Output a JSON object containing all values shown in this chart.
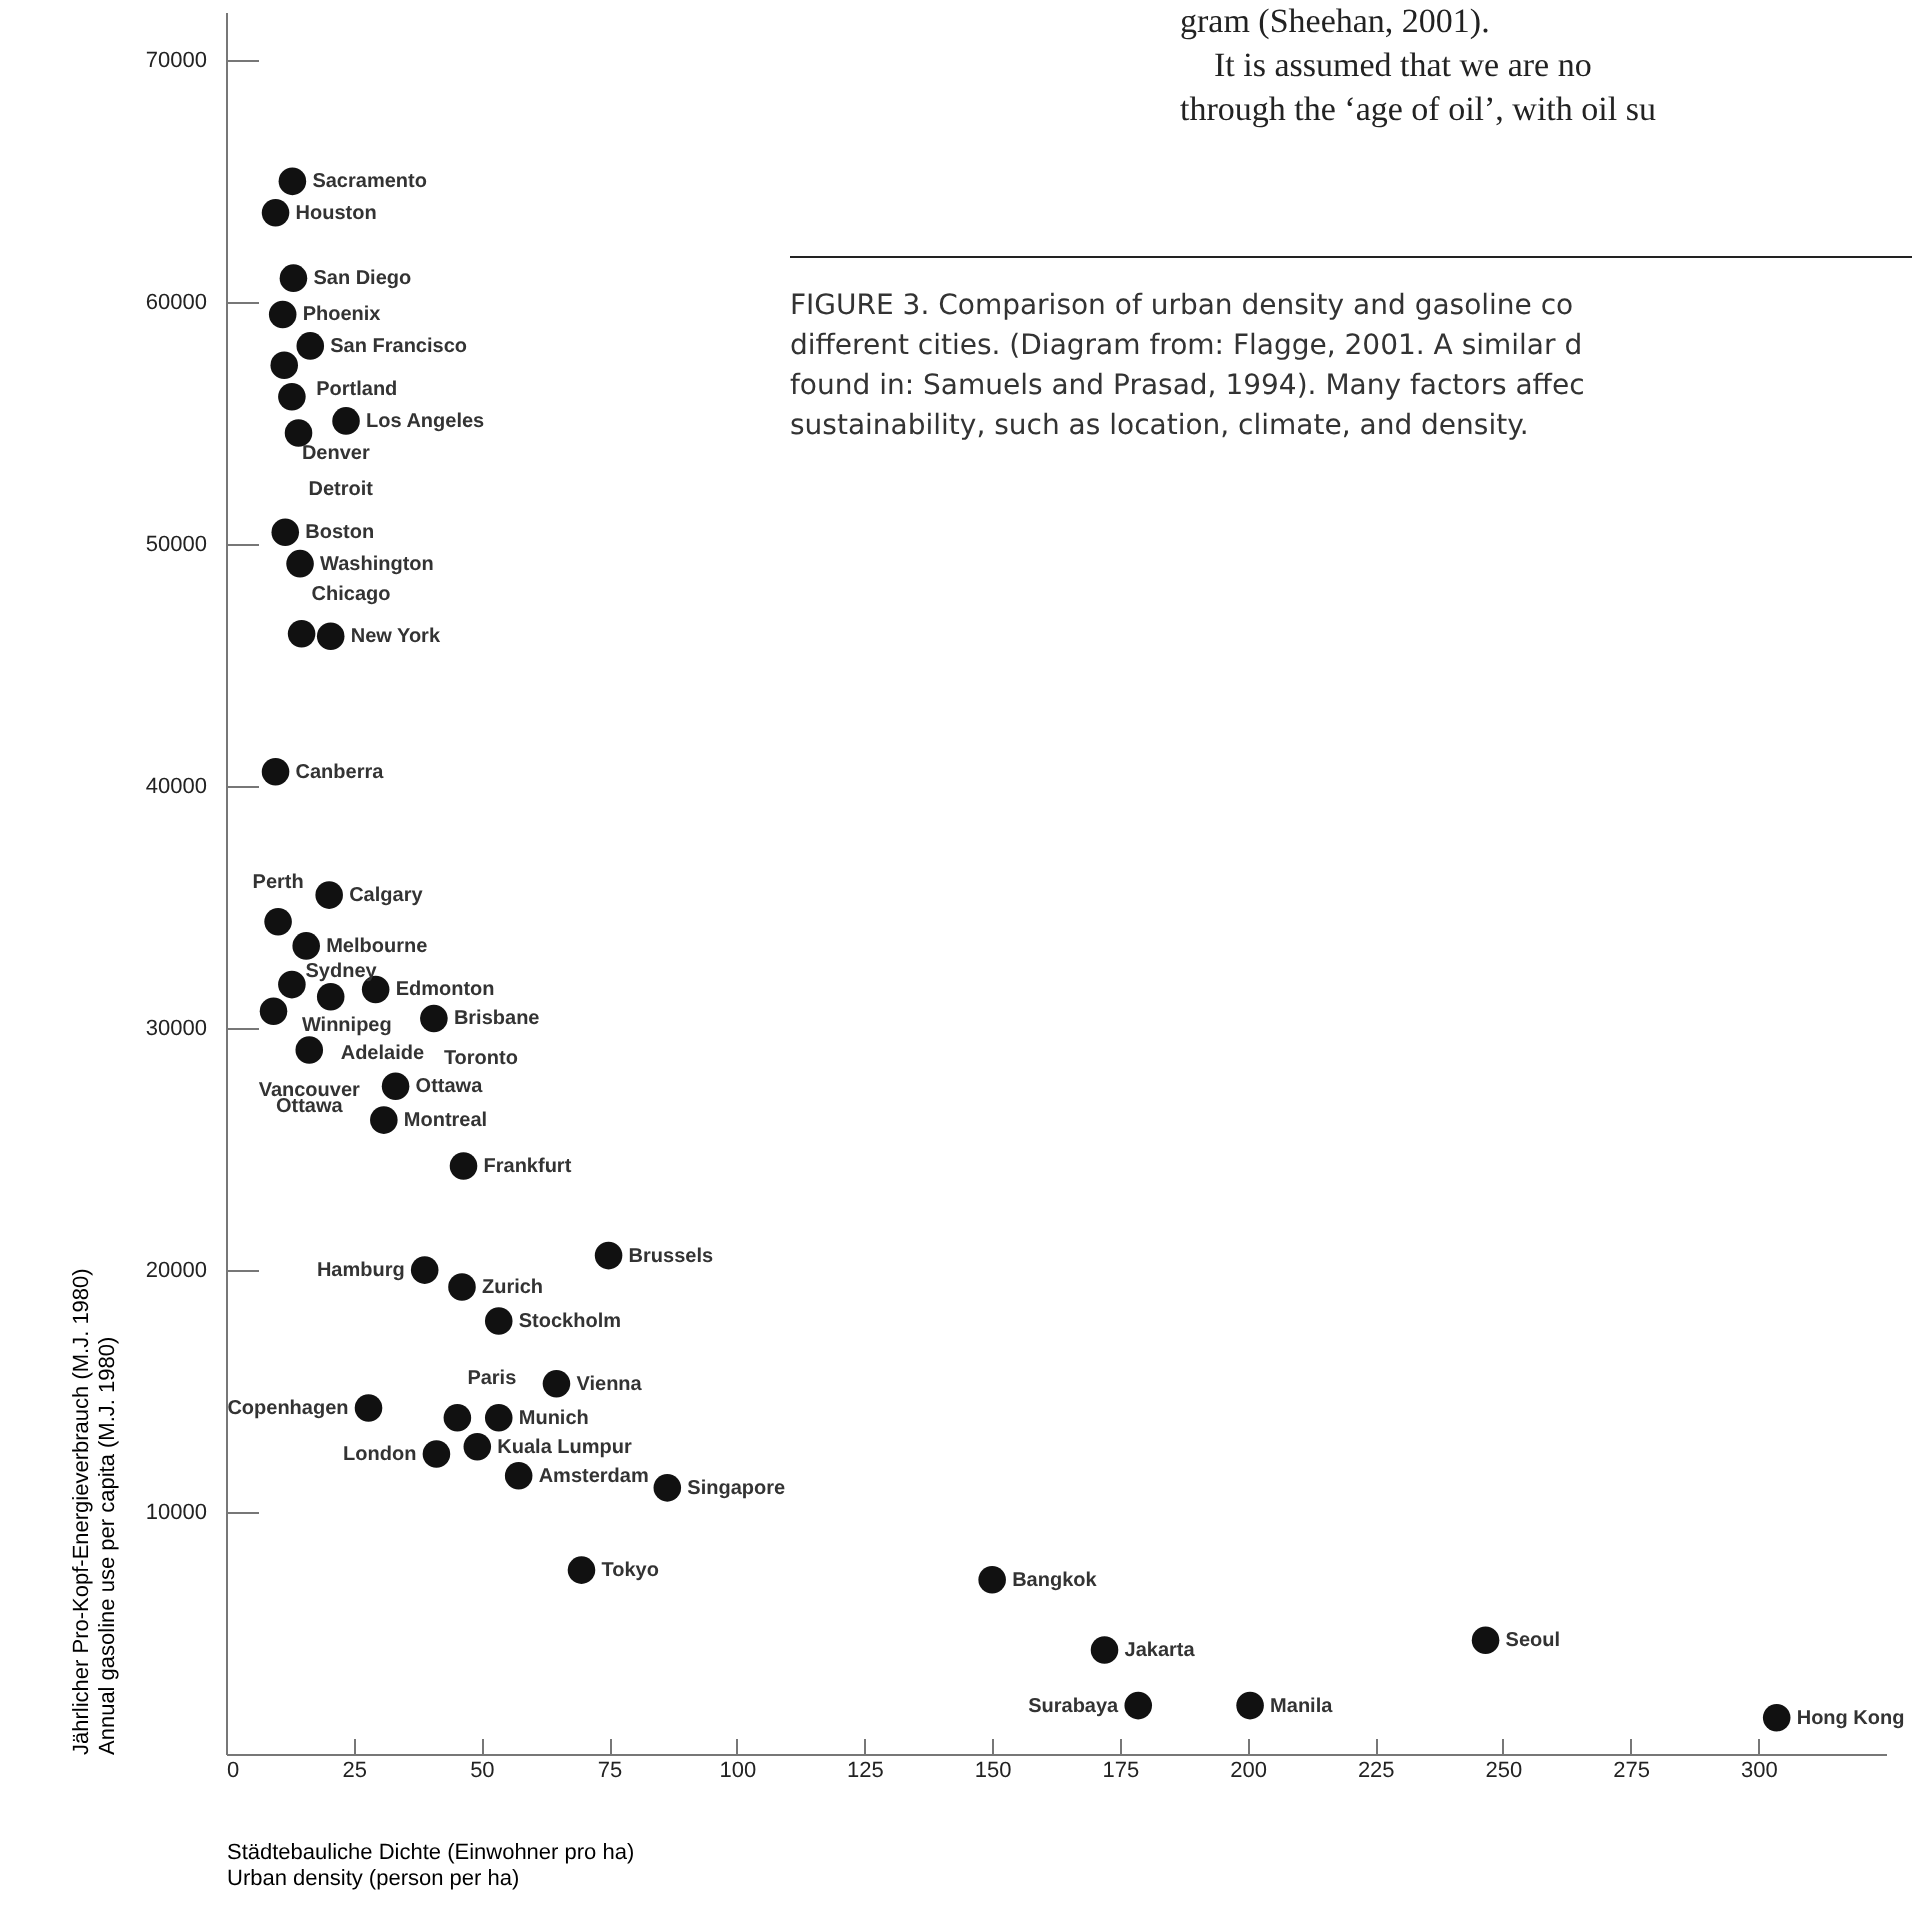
{
  "chart_data": {
    "type": "scatter",
    "xlabel": "Städtebauliche Dichte (Einwohner pro ha)\nUrban density (person per ha)",
    "ylabel": "Jährlicher Pro-Kopf-Energieverbrauch (M.J. 1980)\nAnnual gasoline use per capita (M.J. 1980)",
    "xlim": [
      0,
      325
    ],
    "xticks": [
      0,
      25,
      50,
      75,
      100,
      125,
      150,
      175,
      200,
      225,
      250,
      275,
      300
    ],
    "ylim": [
      0,
      72000
    ],
    "yticks": [
      10000,
      20000,
      30000,
      40000,
      50000,
      60000,
      70000
    ],
    "grid": false,
    "marker": "circle",
    "series": [
      {
        "color": "#111111",
        "x": [
          13,
          9.7,
          13.2,
          11.1,
          16.5,
          11.4,
          12.9,
          23.5,
          14.2,
          11.6,
          14.5,
          14.8,
          20.5,
          9.7,
          20.2,
          10.2,
          15.7,
          12.9,
          20.5,
          29.3,
          9.3,
          40.7,
          16.3,
          33.2,
          30.9,
          46.5,
          74.9,
          38.9,
          46.2,
          53.4,
          64.7,
          27.9,
          45.3,
          53.4,
          41.2,
          49.2,
          57.3,
          86.4,
          69.6,
          150,
          172,
          178.6,
          200.5,
          246.6,
          303.6
        ],
        "values": [
          65000,
          63700,
          61000,
          59500,
          58200,
          57400,
          56100,
          55100,
          54600,
          50500,
          49200,
          46300,
          46200,
          40600,
          35500,
          34400,
          33400,
          31800,
          31300,
          31600,
          30700,
          30400,
          29100,
          27600,
          26200,
          24300,
          20600,
          20000,
          19300,
          17900,
          15300,
          14300,
          13900,
          13900,
          12400,
          12700,
          11500,
          11000,
          7600,
          7200,
          4300,
          2000,
          2000,
          4700,
          1500
        ]
      }
    ],
    "annotations": [
      {
        "text": "Sacramento",
        "x": 13,
        "y": 65000
      },
      {
        "text": "Houston",
        "x": 9.7,
        "y": 63700
      },
      {
        "text": "San Diego",
        "x": 13.2,
        "y": 61000
      },
      {
        "text": "Phoenix",
        "x": 11.1,
        "y": 59500
      },
      {
        "text": "San Francisco",
        "x": 16.5,
        "y": 58200
      },
      {
        "text": "Portland",
        "x": 11.4,
        "y": 57400
      },
      {
        "text": "Denver",
        "x": 12.9,
        "y": 56100
      },
      {
        "text": "Los Angeles",
        "x": 23.5,
        "y": 55100
      },
      {
        "text": "Detroit",
        "x": 14.2,
        "y": 54600
      },
      {
        "text": "Boston",
        "x": 11.6,
        "y": 50500
      },
      {
        "text": "Washington",
        "x": 14.5,
        "y": 49200
      },
      {
        "text": "Chicago",
        "x": 14.8,
        "y": 46300
      },
      {
        "text": "New York",
        "x": 20.5,
        "y": 46200
      },
      {
        "text": "Canberra",
        "x": 9.7,
        "y": 40600
      },
      {
        "text": "Calgary",
        "x": 20.2,
        "y": 35500
      },
      {
        "text": "Perth",
        "x": 10.2,
        "y": 34400
      },
      {
        "text": "Melbourne",
        "x": 15.7,
        "y": 33400
      },
      {
        "text": "Winnipeg",
        "x": 12.9,
        "y": 31800
      },
      {
        "text": "Adelaide",
        "x": 20.5,
        "y": 31300
      },
      {
        "text": "Edmonton",
        "x": 29.3,
        "y": 31600
      },
      {
        "text": "Brisbane",
        "x": 40.7,
        "y": 30400
      },
      {
        "text": "Toronto",
        "x": 40.7,
        "y": 30400
      },
      {
        "text": "Ottawa",
        "x": 33.2,
        "y": 27600
      },
      {
        "text": "Vancouver",
        "x": 16.3,
        "y": 29100
      },
      {
        "text": "Sydney",
        "x": 9.3,
        "y": 30700
      },
      {
        "text": "Montreal",
        "x": 30.9,
        "y": 26200
      },
      {
        "text": "Ottawa",
        "x": 16.3,
        "y": 29100
      },
      {
        "text": "Frankfurt",
        "x": 46.5,
        "y": 24300
      },
      {
        "text": "Hamburg",
        "x": 38.9,
        "y": 20000
      },
      {
        "text": "Brussels",
        "x": 74.9,
        "y": 20600
      },
      {
        "text": "Zurich",
        "x": 46.2,
        "y": 19300
      },
      {
        "text": "Stockholm",
        "x": 53.4,
        "y": 17900
      },
      {
        "text": "Vienna",
        "x": 64.7,
        "y": 15300
      },
      {
        "text": "Copenhagen",
        "x": 27.9,
        "y": 14300
      },
      {
        "text": "Paris",
        "x": 45.3,
        "y": 13900
      },
      {
        "text": "Munich",
        "x": 53.4,
        "y": 13900
      },
      {
        "text": "London",
        "x": 41.2,
        "y": 12400
      },
      {
        "text": "Amsterdam",
        "x": 57.3,
        "y": 11500
      },
      {
        "text": "Singapore",
        "x": 86.4,
        "y": 11000
      },
      {
        "text": "Kuala Lumpur",
        "x": 49.2,
        "y": 12700
      },
      {
        "text": "Tokyo",
        "x": 69.6,
        "y": 7600
      },
      {
        "text": "Bangkok",
        "x": 150,
        "y": 7200
      },
      {
        "text": "Jakarta",
        "x": 172,
        "y": 4300
      },
      {
        "text": "Seoul",
        "x": 246.6,
        "y": 4700
      },
      {
        "text": "Surabaya",
        "x": 178.6,
        "y": 2000
      },
      {
        "text": "Manila",
        "x": 200.5,
        "y": 2000
      },
      {
        "text": "Hong Kong",
        "x": 303.6,
        "y": 1500
      },
      "gram (Sheehan, 2001).\n    It is assumed that we are no\nthrough the ‘age of oil’, with oil su",
      "FIGURE 3. Comparison of urban density and gasoline co\ndifferent cities. (Diagram from: Flagge, 2001. A similar d\nfound in: Samuels and Prasad, 1994). Many factors affec\nsustainability, such as location, climate, and density."
    ]
  }
}
